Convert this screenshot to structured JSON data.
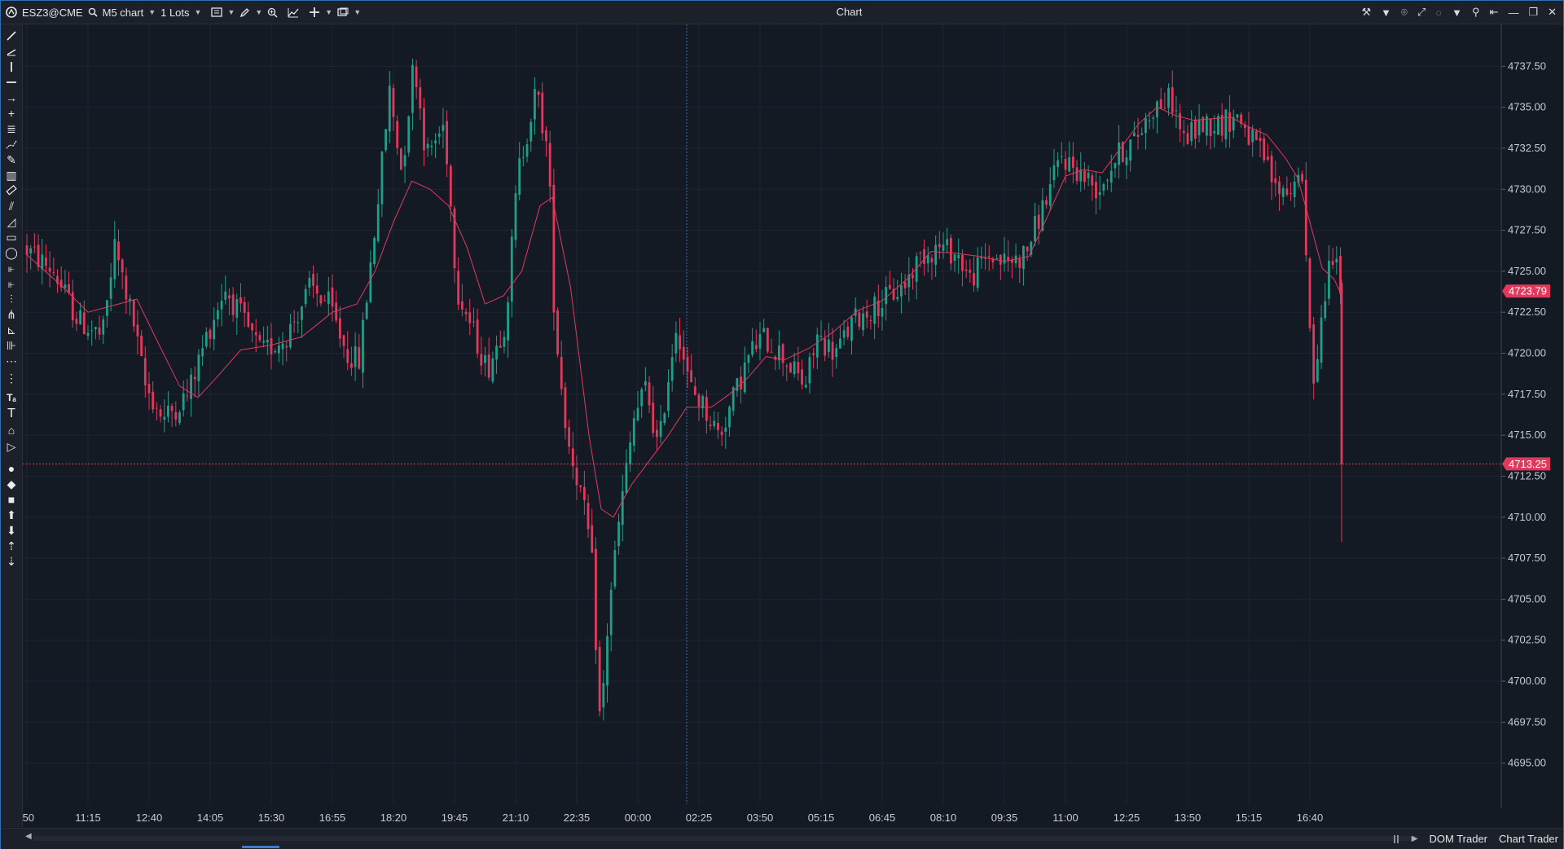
{
  "toolbar": {
    "instrument": "ESZ3@CME",
    "interval": "M5 chart",
    "quantity": "1 Lots"
  },
  "window": {
    "title": "Chart"
  },
  "bottom": {
    "dom_trader": "DOM Trader",
    "chart_trader": "Chart Trader"
  },
  "colors": {
    "background": "#141a24",
    "up_candle": "#1f9e89",
    "down_candle": "#e0395d",
    "moving_average": "#e0395d",
    "last_price_tag": "#e0395d",
    "crosshair_price_tag": "#e0395d"
  },
  "icons": {
    "toolbar": [
      "logo-icon",
      "search-icon",
      "bars-icon",
      "pencil-icon",
      "zoom-icon",
      "indicator-icon",
      "crosshair-icon",
      "window-icon"
    ],
    "left_tools": [
      "line-icon",
      "ray-icon",
      "vertical-line-icon",
      "horizontal-line-icon",
      "arrow-icon",
      "cross-icon",
      "fib-icon",
      "polyline-icon",
      "brush-icon",
      "paint-icon",
      "ruler-icon",
      "channel-icon",
      "triangle-icon",
      "rectangle-icon",
      "ellipse-icon",
      "bars-pattern-icon",
      "bars-pattern2-icon",
      "gann-icon",
      "pitchfork-icon",
      "elliott-icon",
      "harmonic-icon",
      "dots-icon",
      "grip-icon",
      "text-size-icon",
      "text-icon",
      "label-icon",
      "price-label-icon",
      "circle-icon",
      "diamond-icon",
      "square-icon",
      "arrow-up-icon",
      "arrow-down-icon",
      "sort-up-icon",
      "sort-down-icon"
    ]
  },
  "chart_data": {
    "type": "candlestick",
    "instrument": "ESZ3@CME",
    "timeframe": "M5",
    "ylim": [
      4692.5,
      4740.0
    ],
    "y_ticks": [
      "4695.00",
      "4697.50",
      "4700.00",
      "4702.50",
      "4705.00",
      "4707.50",
      "4710.00",
      "4712.50",
      "4715.00",
      "4717.50",
      "4720.00",
      "4722.50",
      "4725.00",
      "4727.50",
      "4730.00",
      "4732.50",
      "4735.00",
      "4737.50"
    ],
    "x_ticks": [
      ":50",
      "11:15",
      "12:40",
      "14:05",
      "15:30",
      "16:55",
      "18:20",
      "19:45",
      "21:10",
      "22:35",
      "00:00",
      "02:25",
      "03:50",
      "05:15",
      "06:45",
      "08:10",
      "09:35",
      "11:00",
      "12:25",
      "13:50",
      "15:15",
      "16:40"
    ],
    "last_price": "4723.79",
    "crosshair_price": "4713.25",
    "crosshair_time_index": 10.8,
    "price_path": [
      [
        0,
        4726.5
      ],
      [
        0.5,
        4725
      ],
      [
        0.9,
        4722
      ],
      [
        1.3,
        4721
      ],
      [
        1.5,
        4726.5
      ],
      [
        1.8,
        4722
      ],
      [
        2.0,
        4718
      ],
      [
        2.3,
        4716
      ],
      [
        2.7,
        4717.5
      ],
      [
        3.0,
        4721
      ],
      [
        3.3,
        4724
      ],
      [
        3.6,
        4722
      ],
      [
        3.9,
        4720
      ],
      [
        4.3,
        4721
      ],
      [
        4.7,
        4724
      ],
      [
        5.0,
        4723
      ],
      [
        5.3,
        4720
      ],
      [
        5.5,
        4719.5
      ],
      [
        5.8,
        4729
      ],
      [
        6.0,
        4736
      ],
      [
        6.2,
        4731
      ],
      [
        6.4,
        4738
      ],
      [
        6.6,
        4732
      ],
      [
        6.9,
        4734
      ],
      [
        7.1,
        4724
      ],
      [
        7.4,
        4721
      ],
      [
        7.6,
        4719
      ],
      [
        7.9,
        4722
      ],
      [
        8.1,
        4731
      ],
      [
        8.4,
        4736
      ],
      [
        8.6,
        4732
      ],
      [
        8.7,
        4722
      ],
      [
        8.9,
        4715
      ],
      [
        9.1,
        4712
      ],
      [
        9.3,
        4708
      ],
      [
        9.45,
        4697
      ],
      [
        9.6,
        4705
      ],
      [
        9.8,
        4711
      ],
      [
        10.0,
        4716
      ],
      [
        10.2,
        4718
      ],
      [
        10.4,
        4714
      ],
      [
        10.5,
        4717
      ],
      [
        10.7,
        4722
      ],
      [
        10.9,
        4718
      ],
      [
        11.1,
        4717
      ],
      [
        11.4,
        4715
      ],
      [
        11.6,
        4717
      ],
      [
        11.9,
        4720
      ],
      [
        12.1,
        4721
      ],
      [
        12.4,
        4720
      ],
      [
        12.6,
        4719
      ],
      [
        12.8,
        4718
      ],
      [
        13.0,
        4721
      ],
      [
        13.3,
        4720
      ],
      [
        13.6,
        4722
      ],
      [
        14.0,
        4723
      ],
      [
        14.4,
        4724
      ],
      [
        14.7,
        4726
      ],
      [
        15.0,
        4726.5
      ],
      [
        15.3,
        4726
      ],
      [
        15.5,
        4724.5
      ],
      [
        15.8,
        4726
      ],
      [
        16.1,
        4725.5
      ],
      [
        16.4,
        4726
      ],
      [
        16.7,
        4729
      ],
      [
        17.0,
        4732
      ],
      [
        17.3,
        4731
      ],
      [
        17.6,
        4730
      ],
      [
        17.9,
        4732
      ],
      [
        18.2,
        4733
      ],
      [
        18.5,
        4735
      ],
      [
        18.8,
        4735.5
      ],
      [
        19.0,
        4733
      ],
      [
        19.3,
        4734
      ],
      [
        19.6,
        4734
      ],
      [
        19.9,
        4734.5
      ],
      [
        20.1,
        4733
      ],
      [
        20.3,
        4732
      ],
      [
        20.5,
        4730
      ],
      [
        20.8,
        4730
      ],
      [
        20.9,
        4732
      ],
      [
        21.0,
        4726
      ],
      [
        21.1,
        4718
      ],
      [
        21.25,
        4722
      ],
      [
        21.4,
        4726
      ],
      [
        21.5,
        4726.5
      ],
      [
        21.52,
        4723.79
      ]
    ],
    "moving_average": [
      [
        0,
        4726
      ],
      [
        0.6,
        4724
      ],
      [
        1.0,
        4722.5
      ],
      [
        1.5,
        4723
      ],
      [
        1.8,
        4723.3
      ],
      [
        2.1,
        4721
      ],
      [
        2.5,
        4718
      ],
      [
        2.8,
        4717.3
      ],
      [
        3.1,
        4718.5
      ],
      [
        3.5,
        4720.2
      ],
      [
        4.0,
        4720.5
      ],
      [
        4.5,
        4721
      ],
      [
        5.0,
        4722.5
      ],
      [
        5.4,
        4723
      ],
      [
        5.7,
        4725
      ],
      [
        6.0,
        4728
      ],
      [
        6.3,
        4730.5
      ],
      [
        6.6,
        4730
      ],
      [
        6.9,
        4729
      ],
      [
        7.2,
        4726.5
      ],
      [
        7.5,
        4723
      ],
      [
        7.8,
        4723.5
      ],
      [
        8.1,
        4725
      ],
      [
        8.4,
        4729
      ],
      [
        8.6,
        4729.5
      ],
      [
        8.9,
        4724
      ],
      [
        9.2,
        4715
      ],
      [
        9.4,
        4710.5
      ],
      [
        9.6,
        4710
      ],
      [
        9.9,
        4712
      ],
      [
        10.2,
        4713.5
      ],
      [
        10.5,
        4715
      ],
      [
        10.8,
        4716.7
      ],
      [
        11.2,
        4716.7
      ],
      [
        11.5,
        4717.5
      ],
      [
        11.8,
        4718.5
      ],
      [
        12.1,
        4719.8
      ],
      [
        12.4,
        4719.6
      ],
      [
        12.8,
        4720.3
      ],
      [
        13.2,
        4721.3
      ],
      [
        13.6,
        4722.6
      ],
      [
        14.0,
        4723.2
      ],
      [
        14.4,
        4724.5
      ],
      [
        14.8,
        4726.2
      ],
      [
        15.2,
        4726.1
      ],
      [
        15.6,
        4725.9
      ],
      [
        16.0,
        4725.6
      ],
      [
        16.4,
        4725.9
      ],
      [
        16.7,
        4728.3
      ],
      [
        17.0,
        4730.8
      ],
      [
        17.3,
        4731.2
      ],
      [
        17.6,
        4731.0
      ],
      [
        17.9,
        4732.5
      ],
      [
        18.2,
        4734
      ],
      [
        18.5,
        4735
      ],
      [
        18.8,
        4734.5
      ],
      [
        19.1,
        4734.2
      ],
      [
        19.4,
        4734.3
      ],
      [
        19.7,
        4734.4
      ],
      [
        20.0,
        4733.8
      ],
      [
        20.3,
        4733.3
      ],
      [
        20.6,
        4731.9
      ],
      [
        20.8,
        4730.7
      ],
      [
        21.0,
        4728
      ],
      [
        21.2,
        4725.2
      ],
      [
        21.4,
        4724.5
      ],
      [
        21.5,
        4723.7
      ]
    ]
  }
}
